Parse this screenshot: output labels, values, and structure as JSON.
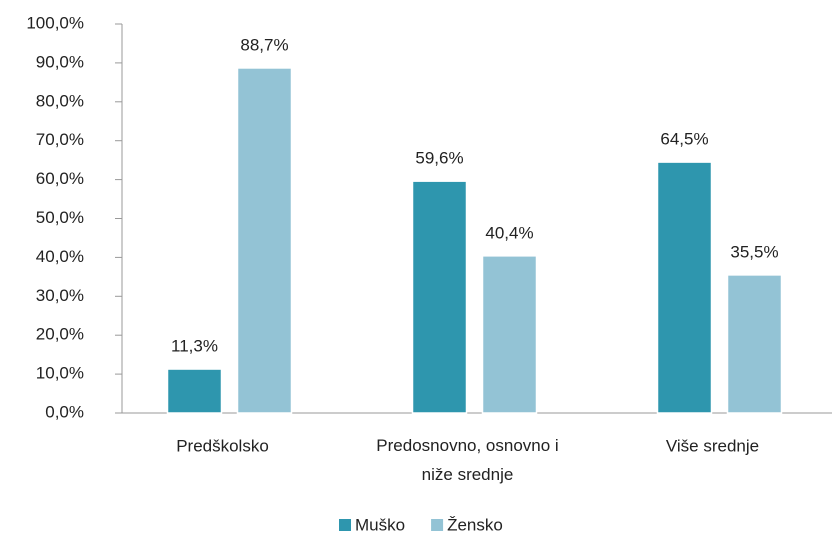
{
  "chart_data": {
    "type": "bar",
    "categories": [
      "Predškolsko",
      "Predosnovno, osnovno i niže srednje",
      "Više srednje"
    ],
    "series": [
      {
        "name": "Muško",
        "color": "#2e96ae",
        "values": [
          11.3,
          59.6,
          64.5
        ],
        "value_labels": [
          "11,3%",
          "59,6%",
          "64,5%"
        ]
      },
      {
        "name": "Žensko",
        "color": "#93c3d5",
        "values": [
          88.7,
          40.4,
          35.5
        ],
        "value_labels": [
          "88,7%",
          "40,4%",
          "35,5%"
        ]
      }
    ],
    "ylim": [
      0,
      100
    ],
    "yticks": [
      {
        "value": 0,
        "label": "0,0%"
      },
      {
        "value": 10,
        "label": "10,0%"
      },
      {
        "value": 20,
        "label": "20,0%"
      },
      {
        "value": 30,
        "label": "30,0%"
      },
      {
        "value": 40,
        "label": "40,0%"
      },
      {
        "value": 50,
        "label": "50,0%"
      },
      {
        "value": 60,
        "label": "60,0%"
      },
      {
        "value": 70,
        "label": "70,0%"
      },
      {
        "value": 80,
        "label": "80,0%"
      },
      {
        "value": 90,
        "label": "90,0%"
      },
      {
        "value": 100,
        "label": "100,0%"
      }
    ],
    "grid": false,
    "legend": "bottom"
  }
}
